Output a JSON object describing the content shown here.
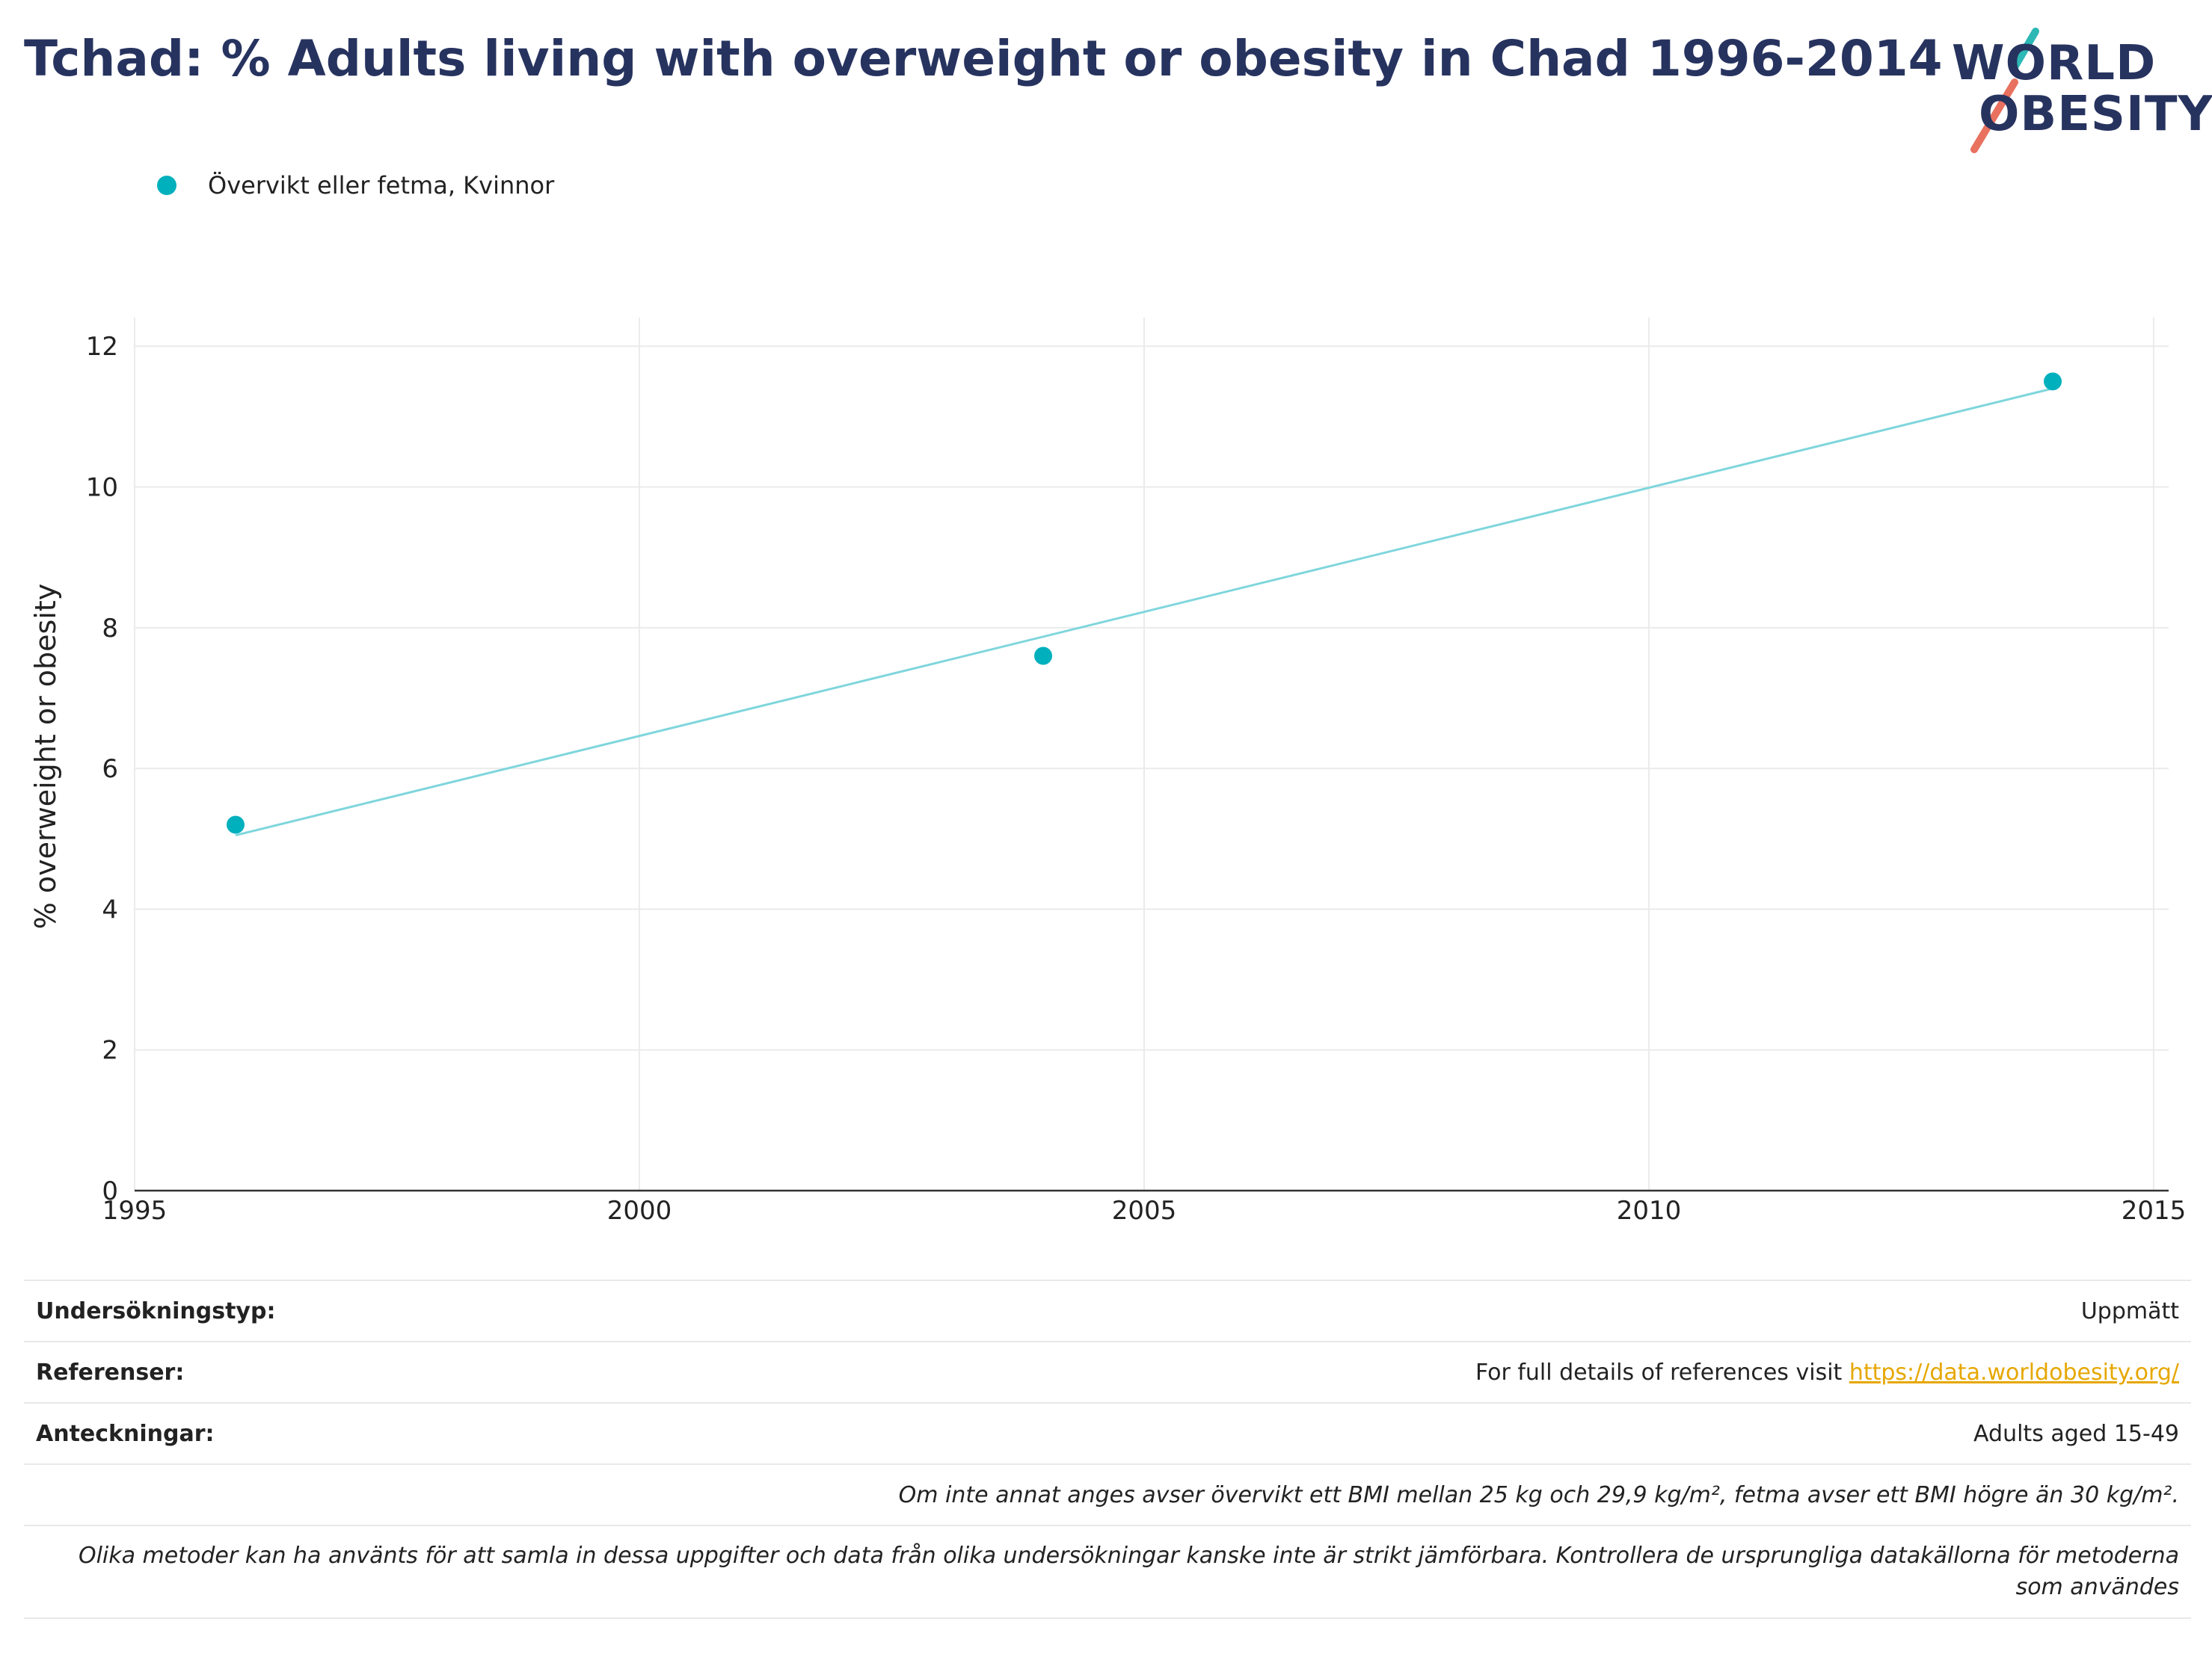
{
  "title": "Tchad: % Adults living with overweight or obesity in Chad 1996-2014",
  "logo": {
    "line1": "WORLD",
    "line2": "OBESITY",
    "accent_teal": "#2cb8b4",
    "accent_coral": "#e8715f"
  },
  "colors": {
    "series": "#00b0bd",
    "trend": "#7fd6dc",
    "title": "#27335f",
    "link": "#e6a700"
  },
  "chart_data": {
    "type": "scatter",
    "ylabel": "% overweight or obesity",
    "xlim": [
      1995,
      2015
    ],
    "ylim": [
      0,
      12.3
    ],
    "x_ticks": [
      1995,
      2000,
      2005,
      2010,
      2015
    ],
    "y_ticks": [
      0,
      2,
      4,
      6,
      8,
      10,
      12
    ],
    "grid": true,
    "legend_position": "top-left",
    "series": [
      {
        "name": "Övervikt eller fetma, Kvinnor",
        "x": [
          1996,
          2004,
          2014
        ],
        "y": [
          5.2,
          7.6,
          11.5
        ]
      }
    ],
    "trendline": {
      "x": [
        1996,
        2014
      ],
      "y": [
        5.05,
        11.4
      ]
    }
  },
  "table": {
    "rows": [
      {
        "label": "Undersökningstyp:",
        "value": "Uppmätt"
      },
      {
        "label": "Referenser:",
        "value_prefix": "For full details of references visit ",
        "link": "https://data.worldobesity.org/"
      },
      {
        "label": "Anteckningar:",
        "value": "Adults aged 15-49"
      }
    ],
    "note1": "Om inte annat anges avser övervikt ett BMI mellan 25 kg och 29,9 kg/m², fetma avser ett BMI högre än 30 kg/m².",
    "note2": "Olika metoder kan ha använts för att samla in dessa uppgifter och data från olika undersökningar kanske inte är strikt jämförbara. Kontrollera de ursprungliga datakällorna för metoderna som användes"
  }
}
